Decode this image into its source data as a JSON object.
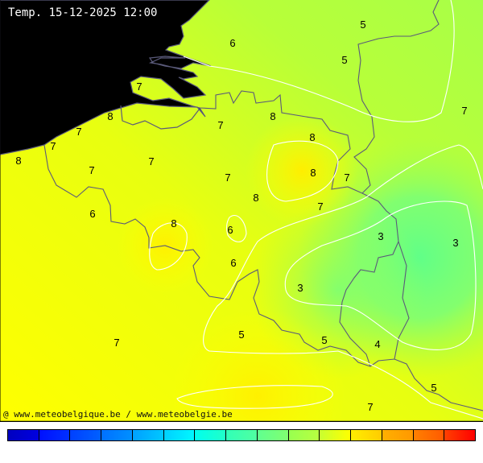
{
  "title": "Temp. 15-12-2025 12:00",
  "credit": "@ www.meteobelgique.be / www.meteobelgie.be",
  "map": {
    "sea_color": "#5a88d8",
    "border_color": "#5a5a7a",
    "isoline_color": "#ffffff",
    "value_labels": [
      "6",
      "5",
      "5",
      "7",
      "7",
      "8",
      "7",
      "7",
      "8",
      "7",
      "8",
      "8",
      "7",
      "7",
      "7",
      "8",
      "7",
      "8",
      "7",
      "6",
      "8",
      "6",
      "3",
      "3",
      "6",
      "3",
      "5",
      "5",
      "4",
      "7",
      "5",
      "7"
    ]
  },
  "colorbar": {
    "colors": [
      [
        "#0000c0",
        "#0000e0"
      ],
      [
        "#0010ff",
        "#0030ff"
      ],
      [
        "#0040ff",
        "#0060ff"
      ],
      [
        "#0070ff",
        "#0090ff"
      ],
      [
        "#00a0ff",
        "#00c8ff"
      ],
      [
        "#00d0ff",
        "#00f8ff"
      ],
      [
        "#00ffee",
        "#20ffc8"
      ],
      [
        "#30ffb8",
        "#50ffa0"
      ],
      [
        "#60ff90",
        "#80ff70"
      ],
      [
        "#98ff50",
        "#b8ff40"
      ],
      [
        "#c8ff30",
        "#ffff00"
      ],
      [
        "#ffee00",
        "#ffcc00"
      ],
      [
        "#ffb000",
        "#ff9800"
      ],
      [
        "#ff8000",
        "#ff5a00"
      ],
      [
        "#ff4000",
        "#ff0000"
      ]
    ]
  }
}
